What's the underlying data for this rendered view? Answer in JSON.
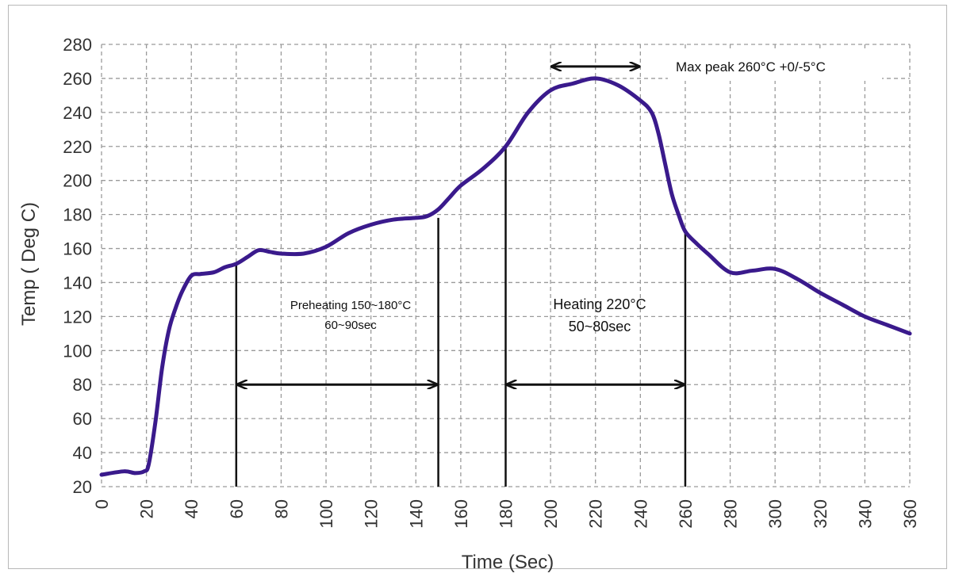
{
  "chart_data": {
    "type": "line",
    "xlabel": "Time (Sec)",
    "ylabel": "Temp ( Deg C)",
    "xlim": [
      0,
      360
    ],
    "ylim": [
      20,
      280
    ],
    "x_ticks": [
      0,
      20,
      40,
      60,
      80,
      100,
      120,
      140,
      160,
      180,
      200,
      220,
      240,
      260,
      280,
      300,
      320,
      340,
      360
    ],
    "y_ticks": [
      20,
      40,
      60,
      80,
      100,
      120,
      140,
      160,
      180,
      200,
      220,
      240,
      260,
      280
    ],
    "grid": true,
    "line_color": "#3a1a8c",
    "series": [
      {
        "x": [
          0,
          10,
          15,
          19,
          21,
          24,
          27,
          30,
          33,
          36,
          40,
          44,
          50,
          55,
          60,
          65,
          70,
          75,
          80,
          90,
          100,
          110,
          120,
          130,
          140,
          145,
          150,
          155,
          160,
          170,
          180,
          190,
          200,
          210,
          220,
          230,
          240,
          245,
          248,
          251,
          254,
          257,
          260,
          265,
          270,
          280,
          290,
          300,
          310,
          320,
          330,
          340,
          350,
          360
        ],
        "y": [
          27,
          29,
          28,
          29,
          33,
          58,
          90,
          112,
          125,
          135,
          144,
          145,
          146,
          149,
          151,
          155,
          159,
          158,
          157,
          157,
          161,
          169,
          174,
          177,
          178,
          179,
          183,
          190,
          197,
          207,
          220,
          240,
          253,
          257,
          260,
          256,
          247,
          240,
          228,
          210,
          192,
          180,
          170,
          163,
          157,
          146,
          147,
          148,
          142,
          134,
          127,
          120,
          115,
          110
        ]
      }
    ],
    "annotations": [
      {
        "id": "preheat",
        "line1": "Preheating 150~180°C",
        "line2": "60~90sec",
        "x_from": 60,
        "x_to": 150,
        "y": 80
      },
      {
        "id": "heating",
        "line1": "Heating 220°C",
        "line2": "50~80sec",
        "x_from": 180,
        "x_to": 260,
        "y": 80
      },
      {
        "id": "peak",
        "text": "Max peak 260°C +0/-5°C",
        "x_from": 200,
        "x_to": 240,
        "y": 267
      }
    ]
  }
}
